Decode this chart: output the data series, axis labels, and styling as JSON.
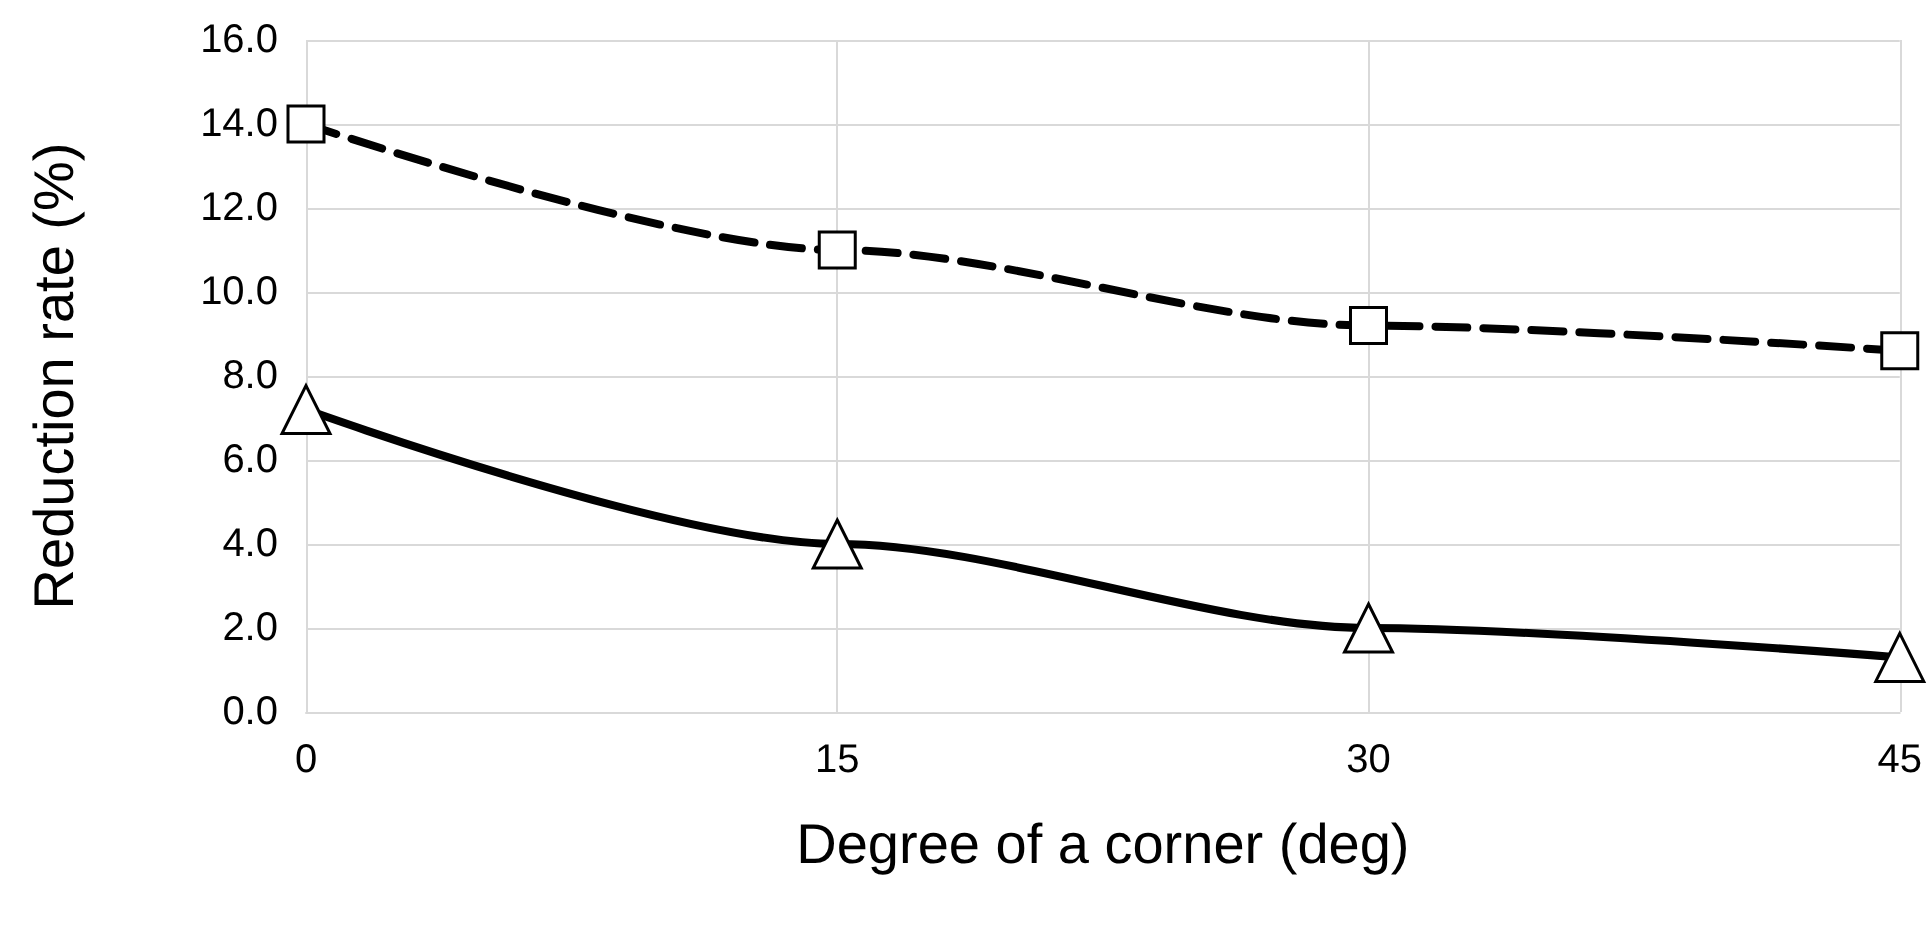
{
  "chart_data": {
    "type": "line",
    "xlabel": "Degree of a corner (deg)",
    "ylabel": "Reduction rate (%)",
    "x": [
      0,
      15,
      30,
      45
    ],
    "xlim": [
      0,
      45
    ],
    "xticks": [
      0,
      15,
      30,
      45
    ],
    "ylim": [
      0,
      16
    ],
    "yticks": [
      {
        "value": 0,
        "label": "0.0"
      },
      {
        "value": 2,
        "label": "2.0"
      },
      {
        "value": 4,
        "label": "4.0"
      },
      {
        "value": 6,
        "label": "6.0"
      },
      {
        "value": 8,
        "label": "8.0"
      },
      {
        "value": 10,
        "label": "10.0"
      },
      {
        "value": 12,
        "label": "12.0"
      },
      {
        "value": 14,
        "label": "14.0"
      },
      {
        "value": 16,
        "label": "16.0"
      }
    ],
    "grid": true,
    "series": [
      {
        "color": "#000000",
        "values": [
          14.0,
          11.0,
          9.2,
          8.6
        ],
        "marker": "square",
        "line_style": "dashed"
      },
      {
        "color": "#000000",
        "values": [
          7.2,
          4.0,
          2.0,
          1.3
        ],
        "marker": "triangle",
        "line_style": "solid"
      }
    ]
  }
}
